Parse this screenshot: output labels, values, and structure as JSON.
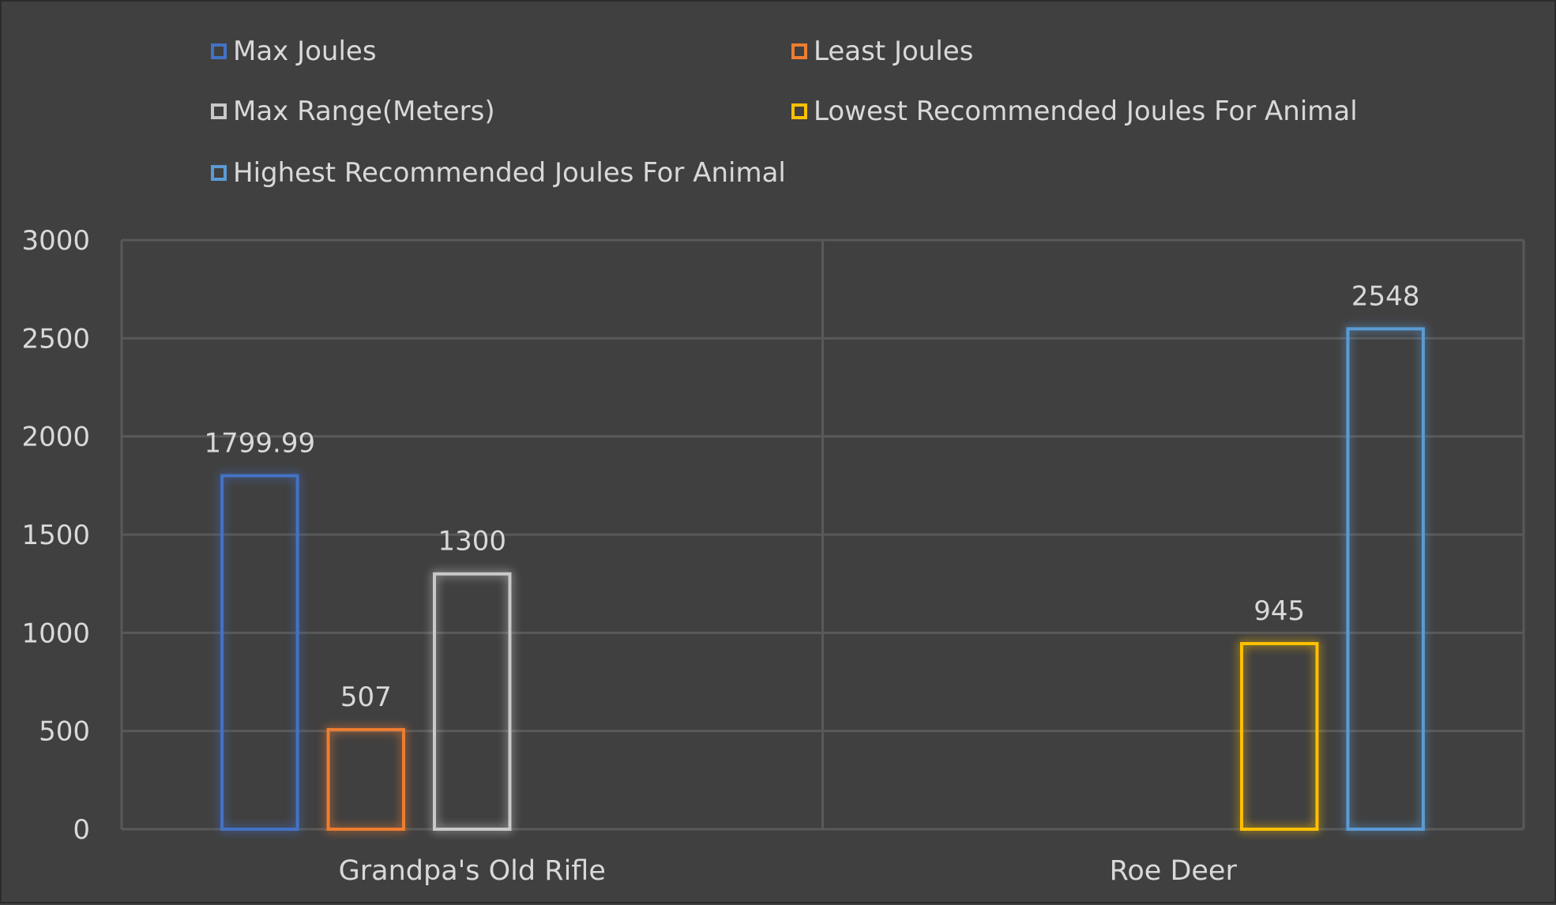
{
  "chart_data": {
    "type": "bar",
    "categories": [
      "Grandpa's Old Rifle",
      "Roe Deer"
    ],
    "series": [
      {
        "name": "Max Joules",
        "color": "#4472c4",
        "values": [
          1799.99,
          null
        ],
        "labels": [
          "1799.99",
          ""
        ]
      },
      {
        "name": "Least Joules",
        "color": "#ed7d31",
        "values": [
          507,
          null
        ],
        "labels": [
          "507",
          ""
        ]
      },
      {
        "name": "Max Range(Meters)",
        "color": "#c9c9c9",
        "values": [
          1300,
          null
        ],
        "labels": [
          "1300",
          ""
        ]
      },
      {
        "name": "Lowest Recommended Joules For Animal",
        "color": "#ffc000",
        "values": [
          null,
          945
        ],
        "labels": [
          "",
          "945"
        ]
      },
      {
        "name": "Highest Recommended Joules For Animal",
        "color": "#5b9bd5",
        "values": [
          null,
          2548
        ],
        "labels": [
          "",
          "2548"
        ]
      }
    ],
    "ylim": [
      0,
      3000
    ],
    "yticks": [
      "0",
      "500",
      "1000",
      "1500",
      "2000",
      "2500",
      "3000"
    ],
    "ytick_values": [
      0,
      500,
      1000,
      1500,
      2000,
      2500,
      3000
    ],
    "grid": true,
    "legend_position": "top",
    "background": "#404040",
    "gridline_color": "#595959",
    "text_color": "#d9d9d9"
  }
}
